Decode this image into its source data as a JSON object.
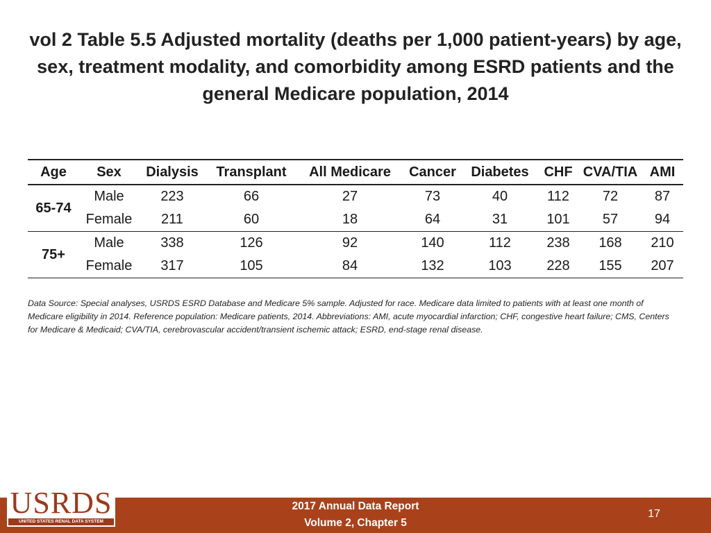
{
  "title": "vol 2 Table 5.5 Adjusted mortality (deaths per 1,000 patient-years) by age, sex, treatment modality, and comorbidity among ESRD patients and the general Medicare population, 2014",
  "table": {
    "headers": [
      "Age",
      "Sex",
      "Dialysis",
      "Transplant",
      "All Medicare",
      "Cancer",
      "Diabetes",
      "CHF",
      "CVA/TIA",
      "AMI"
    ],
    "groups": [
      {
        "age": "65-74",
        "rows": [
          {
            "sex": "Male",
            "values": [
              "223",
              "66",
              "27",
              "73",
              "40",
              "112",
              "72",
              "87"
            ]
          },
          {
            "sex": "Female",
            "values": [
              "211",
              "60",
              "18",
              "64",
              "31",
              "101",
              "57",
              "94"
            ]
          }
        ]
      },
      {
        "age": "75+",
        "rows": [
          {
            "sex": "Male",
            "values": [
              "338",
              "126",
              "92",
              "140",
              "112",
              "238",
              "168",
              "210"
            ]
          },
          {
            "sex": "Female",
            "values": [
              "317",
              "105",
              "84",
              "132",
              "103",
              "228",
              "155",
              "207"
            ]
          }
        ]
      }
    ]
  },
  "footnote": "Data Source: Special analyses, USRDS ESRD Database and Medicare 5% sample. Adjusted for race. Medicare data limited to patients with at least one month of Medicare eligibility in 2014. Reference population: Medicare patients, 2014. Abbreviations: AMI, acute myocardial infarction; CHF, congestive heart failure; CMS, Centers for Medicare & Medicaid; CVA/TIA, cerebrovascular accident/transient ischemic attack; ESRD, end-stage renal disease.",
  "logo": {
    "word": "USRDS",
    "subtitle": "UNITED STATES RENAL DATA SYSTEM"
  },
  "footer": {
    "line1": "2017 Annual Data Report",
    "line2": "Volume 2, Chapter 5",
    "page": "17"
  },
  "colors": {
    "footer_bar": "#a9421b",
    "logo": "#9c3a1c"
  }
}
